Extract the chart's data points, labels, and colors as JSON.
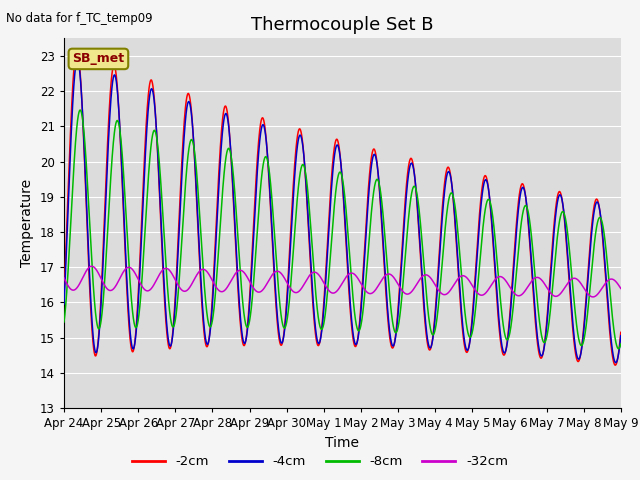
{
  "title": "Thermocouple Set B",
  "top_left_text": "No data for f_TC_temp09",
  "xlabel": "Time",
  "ylabel": "Temperature",
  "ylim": [
    13.0,
    23.5
  ],
  "yticks": [
    13.0,
    14.0,
    15.0,
    16.0,
    17.0,
    18.0,
    19.0,
    20.0,
    21.0,
    22.0,
    23.0
  ],
  "x_tick_labels": [
    "Apr 24",
    "Apr 25",
    "Apr 26",
    "Apr 27",
    "Apr 28",
    "Apr 29",
    "Apr 30",
    "May 1",
    "May 2",
    "May 3",
    "May 4",
    "May 5",
    "May 6",
    "May 7",
    "May 8",
    "May 9"
  ],
  "colors": {
    "2cm": "#ff0000",
    "4cm": "#0000cc",
    "8cm": "#00bb00",
    "32cm": "#cc00cc"
  },
  "legend_labels": [
    "-2cm",
    "-4cm",
    "-8cm",
    "-32cm"
  ],
  "annotation_label": "SB_met",
  "bg_color": "#dcdcdc",
  "fig_bg_color": "#f5f5f5",
  "grid_color": "#ffffff",
  "title_fontsize": 13,
  "axis_fontsize": 9,
  "label_fontsize": 10
}
